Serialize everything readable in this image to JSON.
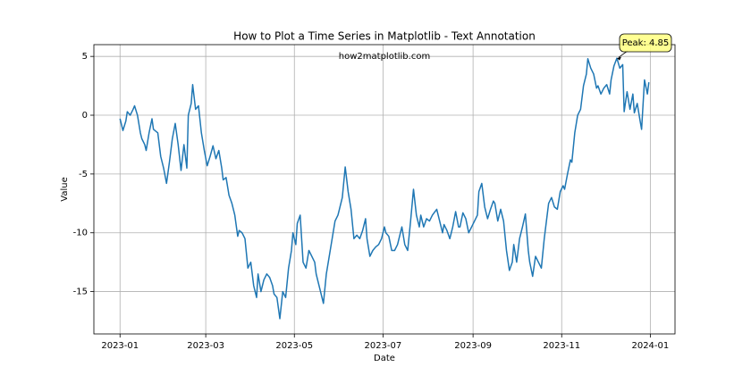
{
  "chart_data": {
    "type": "line",
    "title": "How to Plot a Time Series in Matplotlib - Text Annotation",
    "xlabel": "Date",
    "ylabel": "Value",
    "watermark": "how2matplotlib.com",
    "color": "#1f77b4",
    "grid": true,
    "xlim": [
      -18,
      382
    ],
    "ylim": [
      -18.6,
      6.0
    ],
    "xticks": [
      {
        "value": 0,
        "label": "2023-01"
      },
      {
        "value": 59,
        "label": "2023-03"
      },
      {
        "value": 120,
        "label": "2023-05"
      },
      {
        "value": 181,
        "label": "2023-07"
      },
      {
        "value": 243,
        "label": "2023-09"
      },
      {
        "value": 304,
        "label": "2023-11"
      },
      {
        "value": 365,
        "label": "2024-01"
      }
    ],
    "yticks": [
      5,
      0,
      -5,
      -10,
      -15
    ],
    "annotation": {
      "text": "Peak: 4.85",
      "x": 342,
      "y": 4.85
    },
    "x": [
      0,
      2,
      4,
      5,
      7,
      9,
      10,
      12,
      14,
      15,
      17,
      18,
      20,
      22,
      23,
      26,
      28,
      30,
      32,
      34,
      36,
      38,
      40,
      42,
      44,
      46,
      47,
      49,
      50,
      52,
      54,
      56,
      58,
      60,
      62,
      64,
      66,
      68,
      70,
      71,
      73,
      75,
      77,
      79,
      81,
      82,
      84,
      86,
      88,
      90,
      92,
      94,
      95,
      97,
      99,
      101,
      103,
      105,
      106,
      108,
      110,
      112,
      114,
      116,
      118,
      119,
      121,
      122,
      124,
      126,
      128,
      130,
      132,
      134,
      135,
      138,
      140,
      142,
      144,
      146,
      148,
      150,
      151,
      153,
      155,
      157,
      159,
      161,
      163,
      165,
      167,
      169,
      170,
      172,
      174,
      176,
      178,
      180,
      182,
      183,
      185,
      187,
      189,
      191,
      193,
      194,
      196,
      198,
      200,
      202,
      204,
      206,
      207,
      209,
      211,
      213,
      215,
      218,
      220,
      222,
      223,
      225,
      227,
      229,
      231,
      233,
      234,
      236,
      238,
      240,
      242,
      244,
      246,
      247,
      249,
      251,
      253,
      255,
      257,
      258,
      260,
      262,
      264,
      266,
      268,
      270,
      271,
      273,
      275,
      277,
      279,
      281,
      282,
      284,
      286,
      288,
      290,
      292,
      294,
      295,
      297,
      299,
      301,
      303,
      305,
      306,
      308,
      310,
      311,
      313,
      315,
      317,
      319,
      321,
      322,
      324,
      326,
      328,
      329,
      331,
      333,
      335,
      337,
      338,
      340,
      342,
      344,
      346,
      347,
      349,
      351,
      353,
      354,
      356,
      358,
      359,
      361,
      363,
      364
    ],
    "values": [
      -0.3,
      -1.3,
      -0.5,
      0.3,
      0,
      0.5,
      0.8,
      0,
      -1.5,
      -2,
      -2.5,
      -3,
      -1.5,
      -0.3,
      -1.2,
      -1.5,
      -3.5,
      -4.5,
      -5.8,
      -4,
      -2,
      -0.7,
      -2.5,
      -4.7,
      -2.5,
      -4.5,
      0,
      1,
      2.6,
      0.5,
      0.8,
      -1.5,
      -3,
      -4.3,
      -3.5,
      -2.6,
      -3.7,
      -3,
      -4.5,
      -5.5,
      -5.3,
      -6.8,
      -7.5,
      -8.5,
      -10.3,
      -9.8,
      -10,
      -10.5,
      -13,
      -12.5,
      -14.5,
      -15.5,
      -13.5,
      -15,
      -14,
      -13.5,
      -13.8,
      -14.5,
      -15.2,
      -15.5,
      -17.3,
      -15,
      -15.5,
      -13,
      -11.5,
      -10,
      -11,
      -9.2,
      -8.5,
      -12.5,
      -13,
      -11.5,
      -12,
      -12.5,
      -13.5,
      -15,
      -16,
      -13.5,
      -12,
      -10.5,
      -9,
      -8.5,
      -8,
      -7,
      -4.4,
      -6.5,
      -8,
      -10.5,
      -10.2,
      -10.5,
      -9.8,
      -8.8,
      -10.5,
      -12,
      -11.5,
      -11.2,
      -11,
      -10.5,
      -9.5,
      -10,
      -10.3,
      -11.5,
      -11.5,
      -11,
      -10,
      -9.5,
      -11,
      -11.5,
      -9,
      -6.3,
      -8.5,
      -9.5,
      -8.5,
      -9.5,
      -8.8,
      -9,
      -8.5,
      -8,
      -9,
      -10,
      -9.3,
      -9.8,
      -10.5,
      -9.5,
      -8.2,
      -9.5,
      -9.5,
      -8.3,
      -8.8,
      -10,
      -9.5,
      -9,
      -8.5,
      -6.5,
      -5.8,
      -7.8,
      -8.8,
      -8,
      -7.3,
      -7.5,
      -9,
      -8,
      -9,
      -11.5,
      -13.2,
      -12.5,
      -11,
      -12.5,
      -10.5,
      -9.5,
      -8.4,
      -11.5,
      -12.5,
      -13.7,
      -12,
      -12.5,
      -13,
      -10.5,
      -8.5,
      -7.5,
      -7,
      -7.8,
      -8,
      -6.5,
      -6,
      -6.3,
      -5,
      -3.8,
      -4,
      -1.5,
      0,
      0.5,
      2.5,
      3.5,
      4.8,
      4,
      3.5,
      2.3,
      2.5,
      1.8,
      2.3,
      2.6,
      1.8,
      3,
      4.2,
      4.85,
      4,
      4.3,
      0.3,
      2,
      0.5,
      1.8,
      0.2,
      1,
      -0.5,
      -1.2,
      3,
      1.8,
      2.8
    ]
  }
}
